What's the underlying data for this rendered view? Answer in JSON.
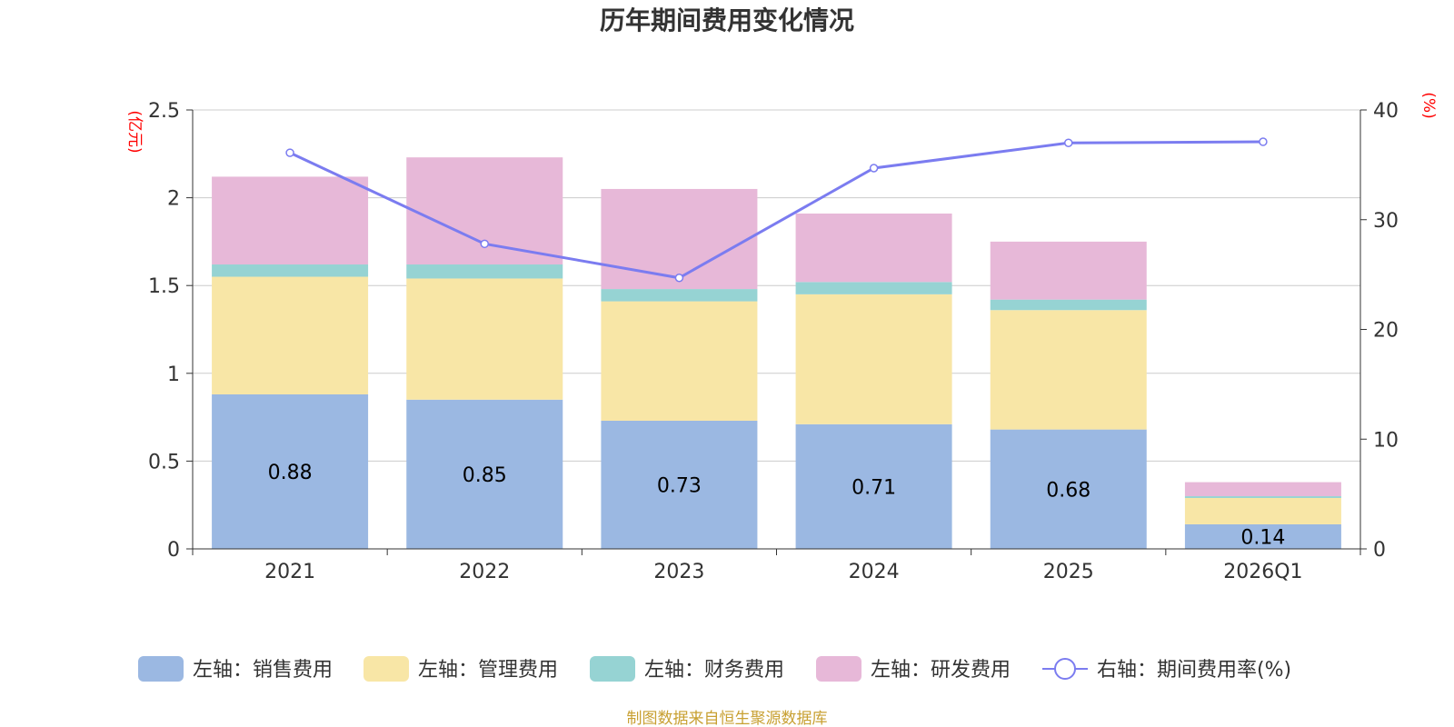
{
  "chart_data": {
    "type": "bar",
    "stacked": true,
    "title": "历年期间费用变化情况",
    "categories": [
      "2021",
      "2022",
      "2023",
      "2024",
      "2025",
      "2026Q1"
    ],
    "y_left": {
      "unit_label": "(亿元)",
      "ylim": [
        0,
        2.5
      ],
      "ticks": [
        "0",
        "0.5",
        "1",
        "1.5",
        "2",
        "2.5"
      ]
    },
    "y_right": {
      "unit_label": "(%)",
      "ylim": [
        0,
        40
      ],
      "ticks": [
        "0",
        "10",
        "20",
        "30",
        "40"
      ]
    },
    "series": [
      {
        "name": "左轴：销售费用",
        "color": "#9bb8e2",
        "values": [
          0.88,
          0.85,
          0.73,
          0.71,
          0.68,
          0.14
        ],
        "labels": [
          "0.88",
          "0.85",
          "0.73",
          "0.71",
          "0.68",
          "0.14"
        ]
      },
      {
        "name": "左轴：管理费用",
        "color": "#f8e6a6",
        "values": [
          0.67,
          0.69,
          0.68,
          0.74,
          0.68,
          0.15
        ]
      },
      {
        "name": "左轴：财务费用",
        "color": "#96d3d3",
        "values": [
          0.07,
          0.08,
          0.07,
          0.07,
          0.06,
          0.01
        ]
      },
      {
        "name": "左轴：研发费用",
        "color": "#e7b8d8",
        "values": [
          0.5,
          0.61,
          0.57,
          0.39,
          0.33,
          0.08
        ]
      }
    ],
    "line_series": {
      "name": "右轴：期间费用率(%)",
      "color": "#7b7cf0",
      "axis": "right",
      "values": [
        36.1,
        27.8,
        24.7,
        34.7,
        37.0,
        37.1
      ]
    },
    "legend_position": "bottom",
    "grid": true
  },
  "source_text": "制图数据来自恒生聚源数据库"
}
